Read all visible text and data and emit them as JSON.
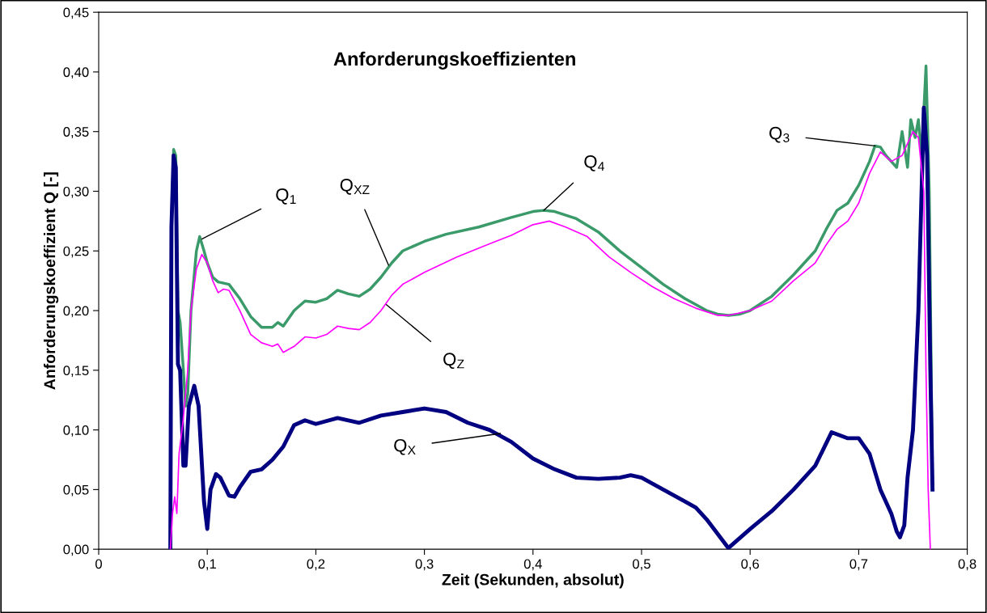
{
  "chart_data": {
    "type": "line",
    "title": "Anforderungskoeffizienten",
    "xlabel": "Zeit (Sekunden, absolut)",
    "ylabel": "Anforderungskoeffizient Q [-]",
    "xlim": [
      0,
      0.8
    ],
    "ylim": [
      0,
      0.45
    ],
    "xticks": [
      0,
      {
        "value": 0.1,
        "label": "0,1"
      },
      {
        "value": 0.2,
        "label": "0,2"
      },
      {
        "value": 0.3,
        "label": "0,3"
      },
      {
        "value": 0.4,
        "label": "0,4"
      },
      {
        "value": 0.5,
        "label": "0,5"
      },
      {
        "value": 0.6,
        "label": "0,6"
      },
      {
        "value": 0.7,
        "label": "0,7"
      },
      {
        "value": 0.8,
        "label": "0,8"
      }
    ],
    "yticks": [
      {
        "value": 0,
        "label": "0,00"
      },
      {
        "value": 0.05,
        "label": "0,05"
      },
      {
        "value": 0.1,
        "label": "0,10"
      },
      {
        "value": 0.15,
        "label": "0,15"
      },
      {
        "value": 0.2,
        "label": "0,20"
      },
      {
        "value": 0.25,
        "label": "0,25"
      },
      {
        "value": 0.3,
        "label": "0,30"
      },
      {
        "value": 0.35,
        "label": "0,35"
      },
      {
        "value": 0.4,
        "label": "0,40"
      },
      {
        "value": 0.45,
        "label": "0,45"
      }
    ],
    "marker": "none",
    "line_style": "solid",
    "series": [
      {
        "color": "#ff00ff",
        "x": [
          0.066,
          0.068,
          0.07,
          0.072,
          0.074,
          0.078,
          0.082,
          0.085,
          0.09,
          0.095,
          0.1,
          0.105,
          0.11,
          0.115,
          0.12,
          0.13,
          0.14,
          0.15,
          0.16,
          0.165,
          0.17,
          0.18,
          0.19,
          0.2,
          0.21,
          0.22,
          0.23,
          0.24,
          0.25,
          0.26,
          0.27,
          0.28,
          0.3,
          0.33,
          0.36,
          0.38,
          0.4,
          0.415,
          0.43,
          0.45,
          0.47,
          0.49,
          0.51,
          0.53,
          0.55,
          0.57,
          0.58,
          0.6,
          0.62,
          0.64,
          0.66,
          0.67,
          0.68,
          0.69,
          0.7,
          0.71,
          0.72,
          0.73,
          0.74,
          0.75,
          0.755,
          0.76,
          0.762,
          0.764,
          0.766
        ],
        "values": [
          0,
          0.03,
          0.044,
          0.03,
          0.08,
          0.11,
          0.15,
          0.2,
          0.235,
          0.247,
          0.24,
          0.225,
          0.215,
          0.218,
          0.217,
          0.2,
          0.18,
          0.173,
          0.17,
          0.172,
          0.165,
          0.17,
          0.178,
          0.177,
          0.18,
          0.187,
          0.185,
          0.184,
          0.19,
          0.2,
          0.213,
          0.222,
          0.232,
          0.245,
          0.256,
          0.263,
          0.272,
          0.275,
          0.27,
          0.262,
          0.245,
          0.232,
          0.22,
          0.21,
          0.202,
          0.196,
          0.196,
          0.2,
          0.208,
          0.225,
          0.24,
          0.255,
          0.268,
          0.275,
          0.29,
          0.315,
          0.333,
          0.325,
          0.33,
          0.35,
          0.345,
          0.3,
          0.15,
          0.05,
          0
        ]
      },
      {
        "color": "#3a9a6a",
        "x": [
          0.066,
          0.067,
          0.069,
          0.071,
          0.073,
          0.075,
          0.078,
          0.08,
          0.082,
          0.085,
          0.09,
          0.093,
          0.097,
          0.1,
          0.105,
          0.11,
          0.12,
          0.13,
          0.14,
          0.15,
          0.16,
          0.165,
          0.17,
          0.18,
          0.19,
          0.2,
          0.21,
          0.22,
          0.23,
          0.24,
          0.25,
          0.26,
          0.27,
          0.28,
          0.3,
          0.32,
          0.35,
          0.38,
          0.4,
          0.41,
          0.42,
          0.44,
          0.46,
          0.48,
          0.5,
          0.52,
          0.54,
          0.56,
          0.57,
          0.58,
          0.59,
          0.6,
          0.62,
          0.64,
          0.66,
          0.67,
          0.68,
          0.69,
          0.7,
          0.71,
          0.715,
          0.72,
          0.725,
          0.73,
          0.735,
          0.74,
          0.745,
          0.748,
          0.752,
          0.755,
          0.758,
          0.762,
          0.765,
          0.768
        ],
        "values": [
          0,
          0.27,
          0.335,
          0.33,
          0.2,
          0.19,
          0.15,
          0.12,
          0.13,
          0.2,
          0.25,
          0.262,
          0.25,
          0.24,
          0.228,
          0.224,
          0.222,
          0.21,
          0.195,
          0.186,
          0.186,
          0.19,
          0.187,
          0.2,
          0.208,
          0.207,
          0.21,
          0.217,
          0.214,
          0.212,
          0.218,
          0.228,
          0.24,
          0.25,
          0.258,
          0.264,
          0.27,
          0.278,
          0.283,
          0.284,
          0.283,
          0.277,
          0.266,
          0.25,
          0.236,
          0.222,
          0.21,
          0.2,
          0.197,
          0.196,
          0.197,
          0.2,
          0.212,
          0.23,
          0.25,
          0.268,
          0.284,
          0.29,
          0.305,
          0.325,
          0.338,
          0.337,
          0.33,
          0.325,
          0.32,
          0.35,
          0.32,
          0.36,
          0.345,
          0.36,
          0.33,
          0.405,
          0.3,
          0.05
        ]
      },
      {
        "color": "#000080",
        "x": [
          0.066,
          0.067,
          0.069,
          0.071,
          0.073,
          0.075,
          0.078,
          0.08,
          0.083,
          0.088,
          0.092,
          0.097,
          0.1,
          0.103,
          0.108,
          0.112,
          0.12,
          0.125,
          0.13,
          0.14,
          0.15,
          0.16,
          0.17,
          0.18,
          0.19,
          0.2,
          0.22,
          0.24,
          0.26,
          0.28,
          0.3,
          0.32,
          0.34,
          0.36,
          0.38,
          0.4,
          0.42,
          0.44,
          0.46,
          0.48,
          0.49,
          0.5,
          0.52,
          0.54,
          0.55,
          0.56,
          0.58,
          0.6,
          0.62,
          0.64,
          0.66,
          0.675,
          0.69,
          0.7,
          0.71,
          0.72,
          0.73,
          0.735,
          0.738,
          0.742,
          0.745,
          0.75,
          0.755,
          0.76,
          0.763,
          0.766,
          0.768
        ],
        "values": [
          0,
          0.27,
          0.33,
          0.32,
          0.155,
          0.15,
          0.07,
          0.07,
          0.12,
          0.137,
          0.12,
          0.04,
          0.017,
          0.05,
          0.063,
          0.06,
          0.045,
          0.044,
          0.052,
          0.065,
          0.067,
          0.075,
          0.086,
          0.104,
          0.108,
          0.105,
          0.11,
          0.106,
          0.112,
          0.115,
          0.118,
          0.115,
          0.106,
          0.1,
          0.09,
          0.076,
          0.067,
          0.06,
          0.059,
          0.06,
          0.062,
          0.06,
          0.05,
          0.04,
          0.035,
          0.025,
          0.001,
          0.017,
          0.032,
          0.05,
          0.07,
          0.098,
          0.093,
          0.093,
          0.08,
          0.05,
          0.03,
          0.015,
          0.01,
          0.02,
          0.06,
          0.1,
          0.2,
          0.37,
          0.33,
          0.15,
          0.05
        ]
      }
    ],
    "annotations": [
      {
        "text": "Q$_{1}$",
        "x": 0.095,
        "y": 0.26
      },
      {
        "text": "Q$_{XZ}$",
        "x": 0.267,
        "y": 0.238
      },
      {
        "text": "Q$_{Z}$",
        "x": 0.265,
        "y": 0.205
      },
      {
        "text": "Q$_{4}$",
        "x": 0.41,
        "y": 0.284
      },
      {
        "text": "Q$_{3}$",
        "x": 0.715,
        "y": 0.338
      },
      {
        "text": "Q$_{X}$",
        "x": 0.37,
        "y": 0.097
      }
    ]
  }
}
